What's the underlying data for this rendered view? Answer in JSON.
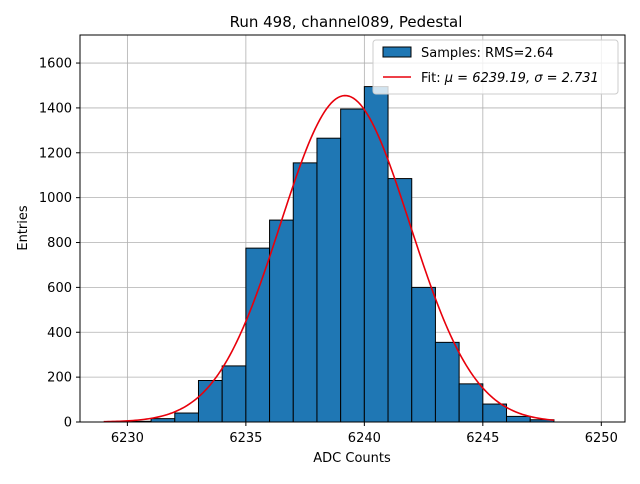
{
  "chart_data": {
    "type": "bar",
    "title": "Run 498, channel089, Pedestal",
    "xlabel": "ADC Counts",
    "ylabel": "Entries",
    "xlim": [
      6228,
      6251
    ],
    "ylim": [
      0,
      1725
    ],
    "xticks": [
      6230,
      6235,
      6240,
      6245,
      6250
    ],
    "yticks": [
      0,
      200,
      400,
      600,
      800,
      1000,
      1200,
      1400,
      1600
    ],
    "grid": true,
    "legend_position": "top-right",
    "bins": {
      "edges": [
        6229,
        6230,
        6231,
        6232,
        6233,
        6234,
        6235,
        6236,
        6237,
        6238,
        6239,
        6240,
        6241,
        6242,
        6243,
        6244,
        6245,
        6246,
        6247,
        6248
      ],
      "counts": [
        0,
        3,
        15,
        40,
        185,
        250,
        775,
        900,
        1155,
        1265,
        1395,
        1495,
        1085,
        600,
        355,
        170,
        80,
        25,
        10
      ]
    },
    "series": [
      {
        "name": "Samples: RMS=2.64",
        "kind": "histogram",
        "color": "#1f77b4",
        "edgecolor": "#000000"
      },
      {
        "name": "Fit: μ = 6239.19, σ = 2.731",
        "kind": "gaussian-fit",
        "color": "#e8000b",
        "mu": 6239.19,
        "sigma": 2.731,
        "amplitude": 1455,
        "x_range": [
          6229,
          6248
        ]
      }
    ],
    "legend": [
      {
        "prefix": "Samples: RMS=2.64",
        "mu_label": "",
        "sigma_label": "",
        "kind": "patch"
      },
      {
        "prefix": "Fit: ",
        "mu_label": "μ = 6239.19, ",
        "sigma_label": "σ = 2.731",
        "kind": "line"
      }
    ]
  }
}
